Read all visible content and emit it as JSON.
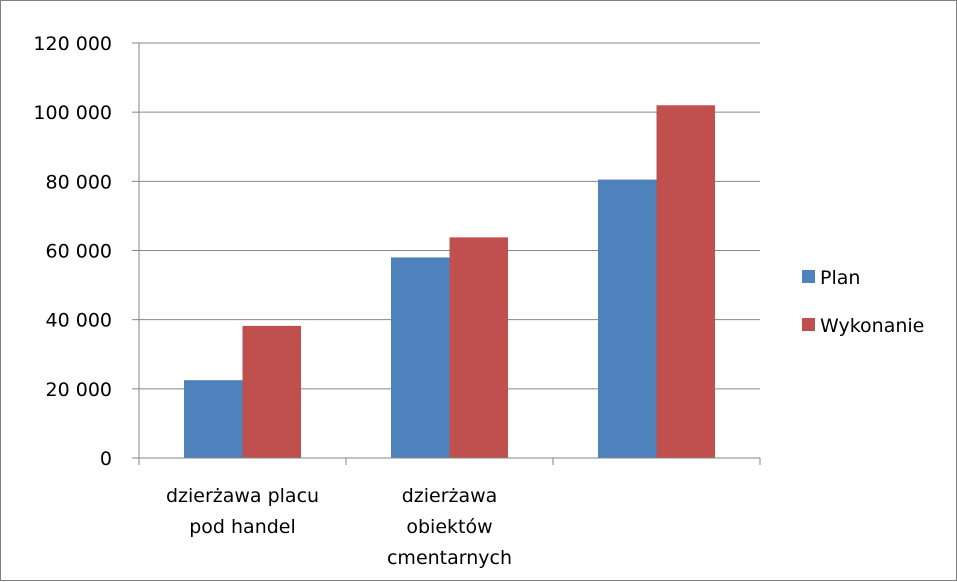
{
  "chart_data": {
    "type": "bar",
    "categories": [
      [
        "dzierżawa placu",
        "pod handel"
      ],
      [
        "dzierżawa",
        "obiektów",
        "cmentarnych"
      ],
      []
    ],
    "series": [
      {
        "name": "Plan",
        "color": "#4f81bd",
        "values": [
          22500,
          58000,
          80500
        ]
      },
      {
        "name": "Wykonanie",
        "color": "#c0504d",
        "values": [
          38200,
          63800,
          102000
        ]
      }
    ],
    "ylim": [
      0,
      120000
    ],
    "yticks": [
      {
        "value": 0,
        "label": "0"
      },
      {
        "value": 20000,
        "label": "20 000"
      },
      {
        "value": 40000,
        "label": "40 000"
      },
      {
        "value": 60000,
        "label": "60 000"
      },
      {
        "value": 80000,
        "label": "80 000"
      },
      {
        "value": 100000,
        "label": "100 000"
      },
      {
        "value": 120000,
        "label": "120 000"
      }
    ],
    "grid": true,
    "legend_position": "right",
    "gridline_color": "#868686"
  }
}
